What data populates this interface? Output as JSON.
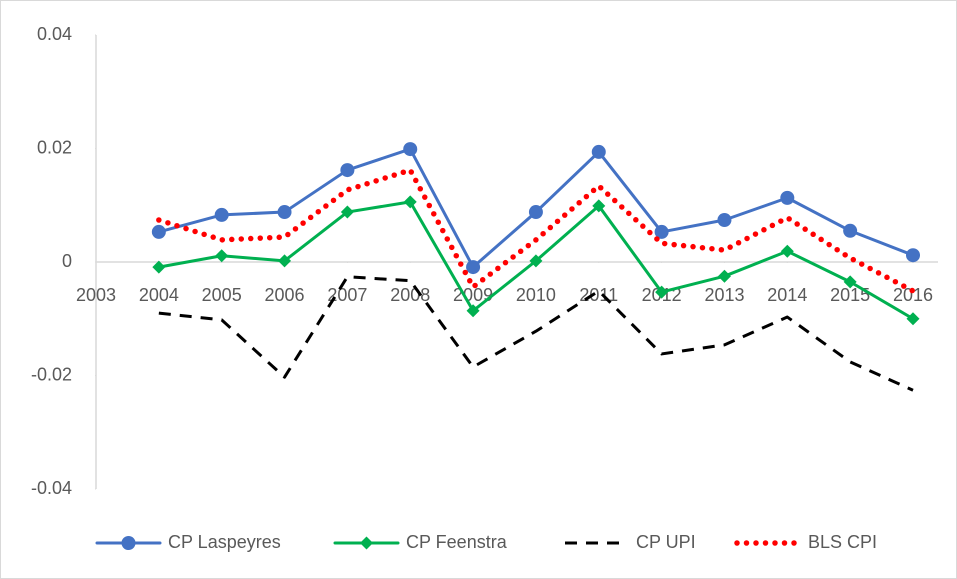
{
  "chart_data": {
    "type": "line",
    "x": [
      2004,
      2005,
      2006,
      2007,
      2008,
      2009,
      2010,
      2011,
      2012,
      2013,
      2014,
      2015,
      2016
    ],
    "xlim": [
      2003,
      2016
    ],
    "xticks": [
      2003,
      2004,
      2005,
      2006,
      2007,
      2008,
      2009,
      2010,
      2011,
      2012,
      2013,
      2014,
      2015,
      2016
    ],
    "ylim": [
      -0.04,
      0.04
    ],
    "yticks": [
      -0.04,
      -0.02,
      0,
      0.02,
      0.04
    ],
    "grid": false,
    "legend": "bottom",
    "series": [
      {
        "name": "CP Laspeyres",
        "color": "#4472c4",
        "line": "solid",
        "marker": "circle",
        "values": [
          0.0053,
          0.0083,
          0.0088,
          0.0162,
          0.0199,
          -0.0009,
          0.0088,
          0.0194,
          0.0053,
          0.0074,
          0.0113,
          0.0055,
          0.0012
        ]
      },
      {
        "name": "CP Feenstra",
        "color": "#00b050",
        "line": "solid",
        "marker": "diamond",
        "values": [
          -0.0009,
          0.0011,
          0.0002,
          0.0088,
          0.0106,
          -0.0086,
          0.0002,
          0.0099,
          -0.0053,
          -0.0025,
          0.0019,
          -0.0035,
          -0.01
        ]
      },
      {
        "name": "CP UPI",
        "color": "#000000",
        "line": "dashed",
        "marker": "none",
        "values": [
          -0.009,
          -0.0102,
          -0.0203,
          -0.0026,
          -0.0033,
          -0.0185,
          -0.0122,
          -0.0051,
          -0.0162,
          -0.0146,
          -0.0097,
          -0.0176,
          -0.0226
        ]
      },
      {
        "name": "BLS CPI",
        "color": "#ff0000",
        "line": "dotted",
        "marker": "none",
        "values": [
          0.0074,
          0.0039,
          0.0044,
          0.0127,
          0.0162,
          -0.0044,
          0.0039,
          0.0134,
          0.0033,
          0.0021,
          0.0078,
          0.0007,
          -0.0051
        ]
      }
    ]
  }
}
